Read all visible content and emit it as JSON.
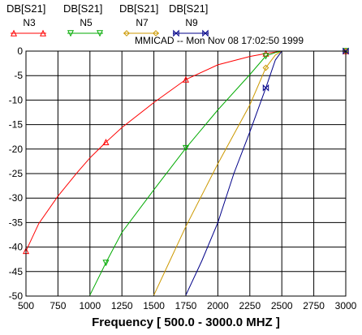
{
  "chart_data": {
    "type": "line",
    "subtitle": "MMICAD -- Mon Nov 08 17:02:50 1999",
    "xlabel": "Frequency [ 500.0 - 3000.0 MHZ ]",
    "ylabel": "",
    "xlim": [
      500,
      3000
    ],
    "ylim": [
      -50,
      0
    ],
    "x_ticks": [
      "500",
      "750",
      "1000",
      "1250",
      "1500",
      "1750",
      "2000",
      "2250",
      "2500",
      "2750",
      "3000"
    ],
    "y_ticks": [
      "0",
      "-5",
      "-10",
      "-15",
      "-20",
      "-25",
      "-30",
      "-35",
      "-40",
      "-45",
      "-50"
    ],
    "grid": true,
    "legend_position": "top-left",
    "series": [
      {
        "name": "N3",
        "measure": "DB[S21]",
        "color": "#ff0000",
        "marker": "triangle-up",
        "x": [
          500,
          600,
          750,
          900,
          1000,
          1125,
          1250,
          1500,
          1750,
          2000,
          2250,
          2375,
          2450,
          2500,
          3000
        ],
        "y": [
          -40.8,
          -35.2,
          -29.6,
          -24.8,
          -21.8,
          -18.6,
          -15.6,
          -10.5,
          -5.8,
          -2.8,
          -1.1,
          -0.5,
          -0.2,
          0,
          0
        ],
        "markers_at": [
          [
            500,
            -40.8
          ],
          [
            1125,
            -18.6
          ],
          [
            1750,
            -5.8
          ],
          [
            2375,
            -0.5
          ],
          [
            3000,
            0
          ]
        ]
      },
      {
        "name": "N5",
        "measure": "DB[S21]",
        "color": "#00aa00",
        "marker": "triangle-down",
        "x": [
          1000,
          1125,
          1250,
          1500,
          1750,
          2000,
          2250,
          2375,
          2450,
          2500,
          3000
        ],
        "y": [
          -49.8,
          -43.2,
          -37.0,
          -28.3,
          -19.8,
          -12.0,
          -4.8,
          -1.0,
          -0.3,
          0,
          0
        ],
        "markers_at": [
          [
            1125,
            -43.2
          ],
          [
            1750,
            -19.8
          ],
          [
            2375,
            -1.0
          ],
          [
            3000,
            0
          ]
        ]
      },
      {
        "name": "N7",
        "measure": "DB[S21]",
        "color": "#cc9900",
        "marker": "diamond",
        "x": [
          1500,
          1625,
          1750,
          2000,
          2250,
          2375,
          2450,
          2500,
          3000
        ],
        "y": [
          -49.8,
          -42.8,
          -35.8,
          -23.0,
          -11.0,
          -3.4,
          -0.8,
          0,
          0
        ],
        "markers_at": [
          [
            2375,
            -3.4
          ],
          [
            3000,
            0
          ]
        ]
      },
      {
        "name": "N9",
        "measure": "DB[S21]",
        "color": "#000088",
        "marker": "bowtie",
        "x": [
          1750,
          1875,
          2000,
          2125,
          2250,
          2375,
          2450,
          2500,
          3000
        ],
        "y": [
          -49.8,
          -42.8,
          -35.0,
          -25.0,
          -16.5,
          -7.5,
          -1.8,
          0,
          0
        ],
        "markers_at": [
          [
            2375,
            -7.5
          ],
          [
            3000,
            0
          ]
        ]
      }
    ]
  }
}
